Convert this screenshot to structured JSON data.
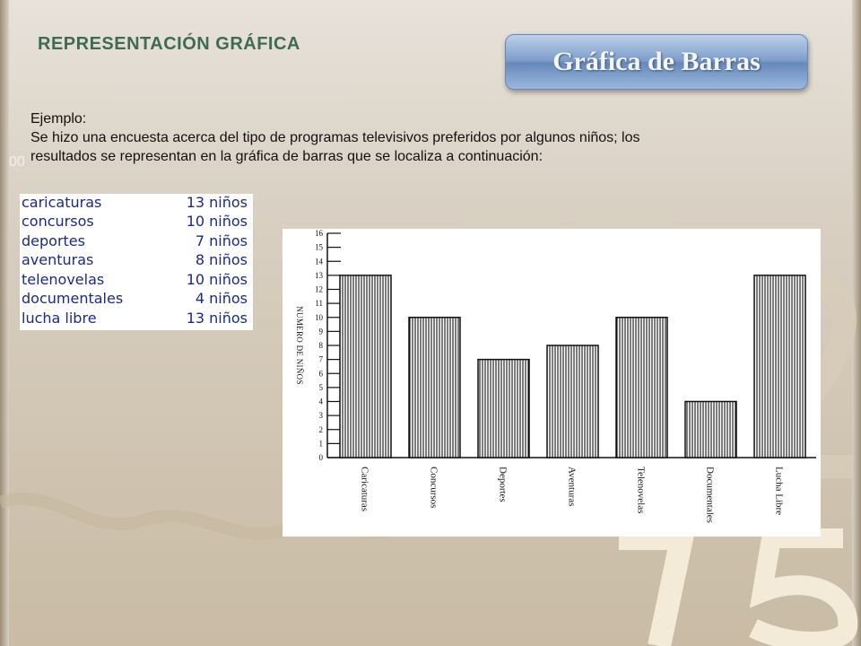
{
  "heading": "REPRESENTACIÓN GRÁFICA",
  "title_button": "Gráfica de Barras",
  "intro": {
    "label": "Ejemplo:",
    "line1": "Se hizo una encuesta acerca del tipo de programas televisivos preferidos por algunos niños; los",
    "line2": "resultados se representan en la  gráfica de barras que se localiza a continuación:",
    "stub": "00"
  },
  "table": [
    {
      "category": "caricaturas",
      "value": "13 niños"
    },
    {
      "category": "concursos",
      "value": "10 niños"
    },
    {
      "category": "deportes",
      "value": "7 niños"
    },
    {
      "category": "aventuras",
      "value": "8 niños"
    },
    {
      "category": "telenovelas",
      "value": "10 niños"
    },
    {
      "category": "documentales",
      "value": "4 niños"
    },
    {
      "category": "lucha libre",
      "value": "13 niños"
    }
  ],
  "colors": {
    "heading": "#3f6b55",
    "table_text": "#1a2a8a",
    "bar_stroke": "#111111"
  },
  "chart_data": {
    "type": "bar",
    "categories": [
      "Caricaturas",
      "Concursos",
      "Deportes",
      "Aventuras",
      "Telenovelas",
      "Documentales",
      "Lucha Libre"
    ],
    "values": [
      13,
      10,
      7,
      8,
      10,
      4,
      13
    ],
    "ylabel": "NUMERO DE NIÑOS",
    "ylim": [
      0,
      16
    ],
    "yticks": [
      "0",
      "1",
      "2",
      "3",
      "4",
      "5",
      "6",
      "7",
      "8",
      "9",
      "10",
      "11",
      "12",
      "13",
      "14",
      "15",
      "16"
    ],
    "grid": false,
    "bar_fill": "vertical-hatch"
  }
}
